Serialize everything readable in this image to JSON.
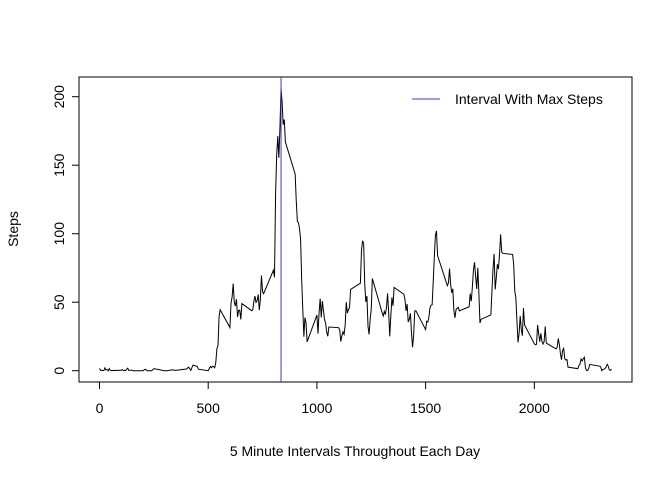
{
  "chart_data": {
    "type": "line",
    "xlabel": "5 Minute Intervals Throughout Each Day",
    "ylabel": "Steps",
    "xlim": [
      -94.2,
      2449.2
    ],
    "ylim": [
      -8.25,
      214.4
    ],
    "xticks": [
      0,
      500,
      1000,
      1500,
      2000
    ],
    "yticks": [
      0,
      50,
      100,
      150,
      200
    ],
    "legend": "topright",
    "vline": {
      "name": "Interval With Max Steps",
      "x": 835,
      "color": "#3b3bd6"
    },
    "series": [
      {
        "color": "#000000",
        "x": [
          0,
          5,
          10,
          15,
          20,
          25,
          30,
          35,
          40,
          45,
          50,
          55,
          100,
          105,
          110,
          115,
          120,
          125,
          130,
          135,
          140,
          145,
          150,
          155,
          200,
          210,
          220,
          230,
          240,
          250,
          300,
          310,
          320,
          330,
          340,
          350,
          400,
          410,
          420,
          430,
          440,
          450,
          455,
          500,
          505,
          510,
          515,
          520,
          525,
          530,
          535,
          540,
          545,
          550,
          555,
          600,
          605,
          610,
          615,
          620,
          625,
          630,
          635,
          640,
          645,
          650,
          655,
          700,
          705,
          710,
          715,
          720,
          725,
          730,
          735,
          740,
          745,
          750,
          755,
          800,
          805,
          810,
          815,
          820,
          825,
          830,
          835,
          840,
          845,
          850,
          855,
          900,
          905,
          910,
          915,
          920,
          925,
          930,
          935,
          940,
          945,
          950,
          955,
          1000,
          1005,
          1010,
          1015,
          1020,
          1025,
          1030,
          1035,
          1040,
          1045,
          1050,
          1055,
          1100,
          1105,
          1110,
          1115,
          1120,
          1125,
          1130,
          1135,
          1140,
          1145,
          1150,
          1155,
          1200,
          1205,
          1210,
          1215,
          1220,
          1225,
          1230,
          1235,
          1240,
          1245,
          1250,
          1255,
          1300,
          1305,
          1310,
          1315,
          1320,
          1325,
          1330,
          1335,
          1340,
          1345,
          1350,
          1355,
          1400,
          1405,
          1410,
          1415,
          1420,
          1425,
          1430,
          1435,
          1440,
          1445,
          1450,
          1455,
          1500,
          1505,
          1510,
          1515,
          1520,
          1525,
          1530,
          1535,
          1540,
          1545,
          1550,
          1555,
          1600,
          1605,
          1610,
          1615,
          1620,
          1625,
          1630,
          1635,
          1640,
          1645,
          1650,
          1655,
          1700,
          1705,
          1710,
          1715,
          1720,
          1725,
          1730,
          1735,
          1740,
          1745,
          1750,
          1755,
          1800,
          1805,
          1810,
          1815,
          1820,
          1825,
          1830,
          1835,
          1840,
          1845,
          1850,
          1855,
          1900,
          1905,
          1910,
          1915,
          1920,
          1925,
          1930,
          1935,
          1940,
          1945,
          1950,
          1955,
          2000,
          2005,
          2010,
          2015,
          2020,
          2025,
          2030,
          2035,
          2040,
          2045,
          2050,
          2055,
          2100,
          2105,
          2110,
          2115,
          2120,
          2125,
          2130,
          2135,
          2140,
          2145,
          2150,
          2155,
          2200,
          2205,
          2210,
          2215,
          2220,
          2225,
          2230,
          2235,
          2240,
          2245,
          2250,
          2255,
          2300,
          2305,
          2310,
          2315,
          2320,
          2325,
          2330,
          2335,
          2340,
          2345,
          2350,
          2355
        ],
        "values": [
          1.7,
          0.3,
          0.1,
          0.2,
          0.1,
          2.1,
          0.5,
          0.9,
          0,
          1.5,
          0.3,
          0.1,
          0.3,
          0.7,
          0.2,
          0.3,
          0,
          1.1,
          1.8,
          0.2,
          0.2,
          0.4,
          0.3,
          0,
          0,
          1.1,
          0,
          0,
          0,
          1.5,
          0,
          0,
          0.2,
          0.6,
          0.5,
          0.2,
          1.2,
          2.6,
          0.3,
          4.1,
          3.5,
          3.1,
          1.1,
          0,
          1.6,
          3.0,
          2.2,
          3.3,
          3.0,
          2.1,
          6.1,
          16,
          18.3,
          39.5,
          44.5,
          31.5,
          49.3,
          53.8,
          63.5,
          50,
          47.1,
          52.2,
          39.3,
          44,
          44.2,
          37.4,
          49,
          43.8,
          44.4,
          50.5,
          54.5,
          49.9,
          51,
          55.7,
          44.3,
          52.3,
          69.5,
          57.8,
          56.2,
          73.4,
          68.2,
          129.4,
          157.5,
          171.2,
          155.4,
          177.3,
          206.2,
          195.9,
          179.6,
          183.4,
          167,
          143.5,
          124,
          109.1,
          108.1,
          103.7,
          95.9,
          66.2,
          45.2,
          24.8,
          38.8,
          35,
          21.1,
          40.6,
          27,
          42.4,
          52.7,
          38.9,
          50.8,
          44.3,
          37.4,
          34.7,
          28.3,
          25.1,
          31.9,
          31.4,
          29.7,
          21.3,
          25.5,
          28.4,
          26.5,
          33.4,
          50,
          42,
          44.6,
          46,
          59.3,
          63.9,
          87.7,
          94.8,
          92.8,
          63.4,
          50.2,
          54.5,
          32.4,
          26.5,
          37.7,
          45.1,
          67.3,
          42.3,
          39.9,
          43.3,
          41,
          46.2,
          56.4,
          42.8,
          25.1,
          40,
          53.5,
          47.3,
          60.8,
          55.8,
          52,
          43.6,
          48.7,
          35.5,
          37.5,
          41.8,
          27.5,
          17.1,
          26.1,
          43.6,
          43.8,
          30,
          36.1,
          35.5,
          38.8,
          46,
          47.8,
          48.1,
          65.3,
          82.9,
          98.7,
          102.1,
          84,
          62.1,
          64.1,
          74.5,
          63.2,
          56.9,
          59.8,
          43.9,
          38.6,
          44.7,
          45.5,
          46.2,
          43.7,
          46.6,
          56.3,
          50.7,
          61.2,
          73.4,
          79.1,
          68.9,
          59.7,
          75.1,
          56.5,
          34.8,
          37.5,
          40.7,
          58,
          74.7,
          85.3,
          59.3,
          67.8,
          77.7,
          74.2,
          85.3,
          99.5,
          86.6,
          85.6,
          84.9,
          77.8,
          58,
          53.4,
          36.3,
          20.7,
          27.4,
          40,
          30.2,
          25.5,
          45.7,
          33.5,
          19.6,
          19,
          19.3,
          33.3,
          26.8,
          21.2,
          27.3,
          21.3,
          19.5,
          21.3,
          32.3,
          20.2,
          15.9,
          17.2,
          23.5,
          19.2,
          12.5,
          8,
          14.7,
          16.3,
          8.7,
          7.8,
          8.1,
          2.6,
          1.5,
          3.7,
          4.8,
          8.5,
          7.1,
          8.7,
          9.8,
          2.2,
          0.3,
          0.1,
          1.6,
          4.6,
          3.3,
          2.8,
          0,
          0.8,
          1,
          1.6,
          2.6,
          4.7,
          3.3,
          0.6,
          0.2,
          1.1
        ]
      }
    ]
  }
}
